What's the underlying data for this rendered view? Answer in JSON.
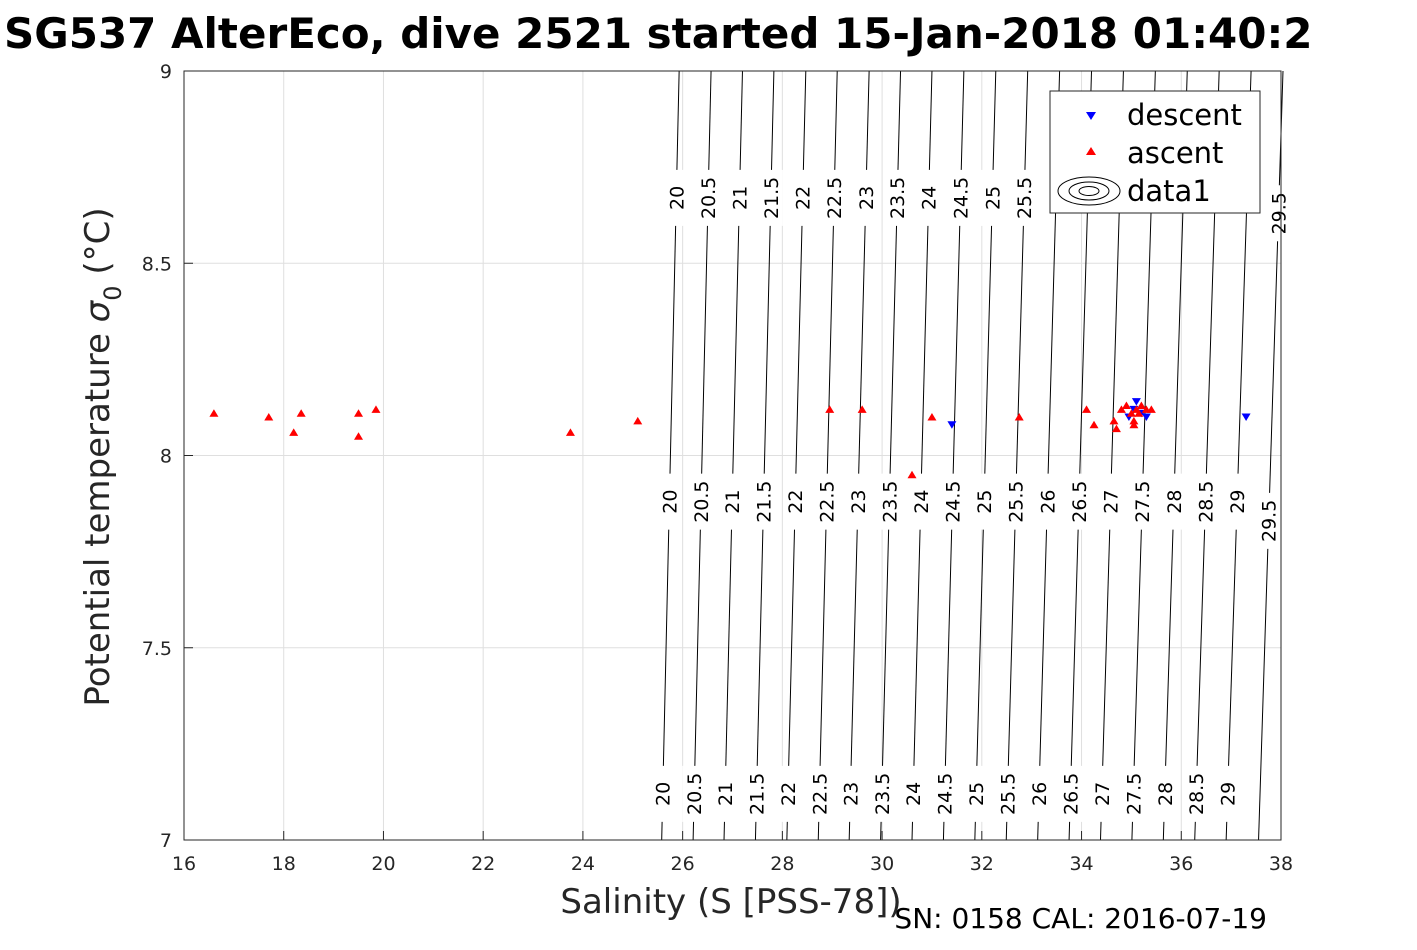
{
  "chart_data": {
    "type": "scatter",
    "title": "SG537 AlterEco, dive 2521 started 15-Jan-2018 01:40:2",
    "xlabel": "Salinity (S [PSS-78])",
    "ylabel_main": "Potential temperature ",
    "ylabel_sigma": "σ",
    "ylabel_sub": "0",
    "ylabel_unit": " (°C)",
    "footer": "SN: 0158  CAL: 2016-07-19",
    "xlim": [
      16,
      38
    ],
    "ylim": [
      7,
      9
    ],
    "xticks": [
      16,
      18,
      20,
      22,
      24,
      26,
      28,
      30,
      32,
      34,
      36,
      38
    ],
    "yticks": [
      7,
      7.5,
      8,
      8.5,
      9
    ],
    "grid": true,
    "legend_position": "top-right",
    "legend": [
      "descent",
      "ascent",
      "data1"
    ],
    "series": [
      {
        "name": "descent",
        "marker": "triangle-down",
        "color": "#0000ff",
        "points": [
          [
            31.4,
            8.08
          ],
          [
            34.95,
            8.1
          ],
          [
            35.05,
            8.12
          ],
          [
            35.1,
            8.14
          ],
          [
            35.2,
            8.11
          ],
          [
            35.3,
            8.1
          ],
          [
            37.3,
            8.1
          ]
        ]
      },
      {
        "name": "ascent",
        "marker": "triangle-up",
        "color": "#ff0000",
        "points": [
          [
            16.6,
            8.11
          ],
          [
            17.7,
            8.1
          ],
          [
            18.2,
            8.06
          ],
          [
            18.35,
            8.11
          ],
          [
            19.5,
            8.05
          ],
          [
            19.5,
            8.11
          ],
          [
            19.85,
            8.12
          ],
          [
            23.75,
            8.06
          ],
          [
            25.1,
            8.09
          ],
          [
            28.95,
            8.12
          ],
          [
            29.6,
            8.12
          ],
          [
            30.6,
            7.95
          ],
          [
            31.0,
            8.1
          ],
          [
            32.75,
            8.1
          ],
          [
            34.1,
            8.12
          ],
          [
            34.25,
            8.08
          ],
          [
            34.65,
            8.09
          ],
          [
            34.7,
            8.07
          ],
          [
            34.8,
            8.12
          ],
          [
            34.9,
            8.13
          ],
          [
            35.0,
            8.11
          ],
          [
            35.05,
            8.09
          ],
          [
            35.05,
            8.08
          ],
          [
            35.1,
            8.12
          ],
          [
            35.15,
            8.11
          ],
          [
            35.2,
            8.13
          ],
          [
            35.3,
            8.12
          ],
          [
            35.4,
            8.12
          ]
        ]
      }
    ],
    "density_contours": {
      "levels": [
        20,
        20.5,
        21,
        21.5,
        22,
        22.5,
        23,
        23.5,
        24,
        24.5,
        25,
        25.5,
        26,
        26.5,
        27,
        27.5,
        28,
        28.5,
        29,
        29.5
      ],
      "salinity_at_temp_7": [
        25.58,
        26.21,
        26.83,
        27.46,
        28.09,
        28.72,
        29.34,
        29.97,
        30.6,
        31.23,
        31.86,
        32.49,
        33.12,
        33.75,
        34.38,
        35.01,
        35.64,
        36.27,
        36.9,
        37.55
      ],
      "salinity_at_temp_9": [
        25.93,
        26.57,
        27.2,
        27.83,
        28.47,
        29.1,
        29.74,
        30.37,
        31.0,
        31.64,
        32.28,
        32.92,
        33.56,
        34.2,
        34.84,
        35.48,
        36.12,
        36.76,
        37.4,
        38.04
      ],
      "label_rows": [
        {
          "temp": 8.67,
          "levels": [
            20,
            20.5,
            21,
            21.5,
            22,
            22.5,
            23,
            23.5,
            24,
            24.5,
            25,
            25.5
          ]
        },
        {
          "temp": 8.63,
          "levels": [
            29.5
          ]
        },
        {
          "temp": 7.88,
          "levels": [
            20,
            20.5,
            21,
            21.5,
            22,
            22.5,
            23,
            23.5,
            24,
            24.5,
            25,
            25.5,
            26,
            26.5,
            27,
            27.5,
            28,
            28.5,
            29
          ]
        },
        {
          "temp": 7.83,
          "levels": [
            29.5
          ]
        },
        {
          "temp": 7.12,
          "levels": [
            20,
            20.5,
            21,
            21.5,
            22,
            22.5,
            23,
            23.5,
            24,
            24.5,
            25,
            25.5,
            26,
            26.5,
            27,
            27.5,
            28,
            28.5,
            29
          ]
        }
      ]
    }
  }
}
